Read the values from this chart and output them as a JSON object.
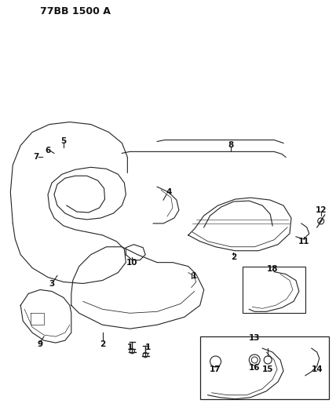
{
  "title": "77BB 1500 A",
  "bg_color": "#ffffff",
  "line_color": "#222222",
  "title_fontsize": 9,
  "label_fontsize": 7.5,
  "fig_width": 4.28,
  "fig_height": 5.33,
  "dpi": 100,
  "labels": {
    "title": "77BB 1500 A",
    "numbers": [
      "1",
      "1",
      "2",
      "9",
      "13",
      "14",
      "15",
      "16",
      "17",
      "18",
      "1",
      "2",
      "3",
      "4",
      "5",
      "6",
      "7",
      "8",
      "10",
      "11",
      "12"
    ]
  }
}
